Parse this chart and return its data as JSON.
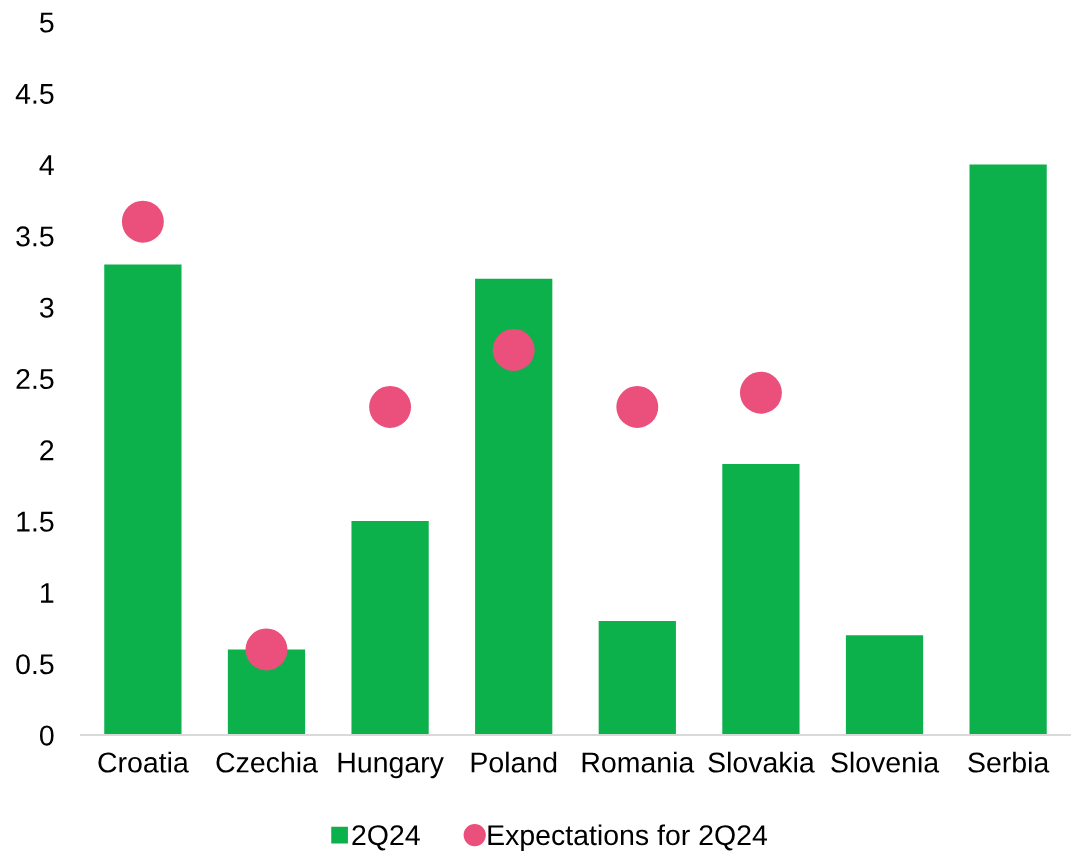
{
  "chart_data": {
    "type": "bar",
    "categories": [
      "Croatia",
      "Czechia",
      "Hungary",
      "Poland",
      "Romania",
      "Slovakia",
      "Slovenia",
      "Serbia"
    ],
    "series": [
      {
        "name": "2Q24",
        "color": "#0db14b",
        "values": [
          3.3,
          0.6,
          1.5,
          3.2,
          0.8,
          1.9,
          0.7,
          4.0
        ]
      },
      {
        "name": "Expectations for 2Q24",
        "type": "scatter",
        "color": "#eb4f7c",
        "marker": "circle",
        "x": [
          "Croatia",
          "Czechia",
          "Hungary",
          "Poland",
          "Romania",
          "Slovakia",
          "Slovenia",
          "Serbia"
        ],
        "values": [
          3.6,
          0.6,
          2.3,
          2.7,
          2.3,
          2.4,
          null,
          null
        ]
      }
    ],
    "ylim": [
      0,
      5
    ],
    "yticks": [
      0,
      0.5,
      1,
      1.5,
      2,
      2.5,
      3,
      3.5,
      4,
      4.5,
      5
    ],
    "grid": false,
    "legend": "bottom"
  }
}
